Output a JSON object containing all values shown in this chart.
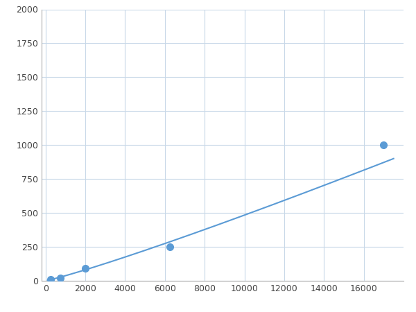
{
  "x_data": [
    250,
    750,
    2000,
    6250,
    17000
  ],
  "y_data": [
    10,
    20,
    90,
    250,
    1000
  ],
  "line_color": "#5b9bd5",
  "marker_color": "#5b9bd5",
  "marker_size": 7,
  "xlim": [
    -200,
    18000
  ],
  "ylim": [
    0,
    2000
  ],
  "xticks": [
    0,
    2000,
    4000,
    6000,
    8000,
    10000,
    12000,
    14000,
    16000
  ],
  "yticks": [
    0,
    250,
    500,
    750,
    1000,
    1250,
    1500,
    1750,
    2000
  ],
  "grid_color": "#c8d8e8",
  "background_color": "#ffffff",
  "figsize": [
    6.0,
    4.5
  ],
  "dpi": 100
}
